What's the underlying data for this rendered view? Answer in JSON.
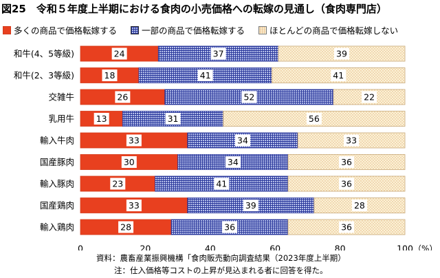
{
  "title": "図25　令和５年度上半期における食肉の小売価格への転嫁の見通し（食肉専門店）",
  "legend": {
    "many": "多くの商品で価格転嫁する",
    "some": "一部の商品で価格転嫁する",
    "few": "ほとんどの商品で価格転嫁しない"
  },
  "colors": {
    "many": "#e8401f",
    "some_fill": "#b9c3ec",
    "some_grid": "#27359a",
    "few_fill": "#fbf2d6",
    "few_dots": "#e3b07a"
  },
  "notes": {
    "source": "資料：農畜産業振興機構「食肉販売動向調査結果（2023年度上半期）",
    "note": "注：仕入価格等コストの上昇が見込まれる者に回答を得た。"
  },
  "chart_data": {
    "type": "bar",
    "orientation": "horizontal",
    "stacked": true,
    "categories": [
      "和牛(4、5等級)",
      "和牛(2、3等級)",
      "交雑牛",
      "乳用牛",
      "輸入牛肉",
      "国産豚肉",
      "輸入豚肉",
      "国産鶏肉",
      "輸入鶏肉"
    ],
    "series": [
      {
        "name": "多くの商品で価格転嫁する",
        "values": [
          24,
          18,
          26,
          13,
          33,
          30,
          23,
          33,
          28
        ]
      },
      {
        "name": "一部の商品で価格転嫁する",
        "values": [
          37,
          41,
          52,
          31,
          34,
          34,
          41,
          39,
          36
        ]
      },
      {
        "name": "ほとんどの商品で価格転嫁しない",
        "values": [
          39,
          41,
          22,
          56,
          33,
          36,
          36,
          28,
          36
        ]
      }
    ],
    "xlim": [
      0,
      100
    ],
    "xticks": [
      "0",
      "20",
      "40",
      "60",
      "80",
      "100"
    ],
    "xunit": "（%）",
    "grid": false,
    "legend_position": "top"
  }
}
